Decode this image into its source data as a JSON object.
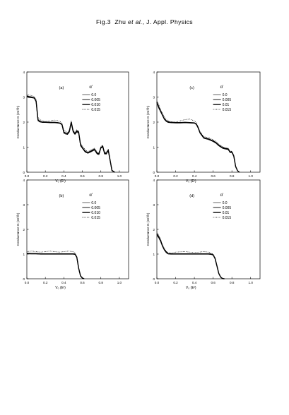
{
  "header": {
    "fig": "Fig.3",
    "authors": "Zhu",
    "etal": "et al.",
    "journal": ", J. Appl. Physics"
  },
  "chart_data": [
    {
      "type": "line",
      "panel_label": "(a)",
      "xlabel": "V₀ (Eᶠ)",
      "ylabel": "Conductance G (2e²/h)",
      "xlim": [
        0.0,
        1.1
      ],
      "ylim": [
        0,
        4
      ],
      "xticks": [
        "0.0",
        "0.2",
        "0.4",
        "0.6",
        "0.8",
        "1.0"
      ],
      "yticks": [
        "0",
        "1",
        "2",
        "3",
        "4"
      ],
      "legend_title": "α'",
      "legend_placement": "top-right",
      "series": [
        {
          "name": "0.0",
          "style": "solid-thin",
          "x": [
            0.0,
            0.02,
            0.05,
            0.08,
            0.1,
            0.12,
            0.14,
            0.17,
            0.2,
            0.25,
            0.3,
            0.33,
            0.36,
            0.38,
            0.4,
            0.42,
            0.44,
            0.46,
            0.48,
            0.5,
            0.52,
            0.54,
            0.56,
            0.58,
            0.6,
            0.63,
            0.66,
            0.7,
            0.73,
            0.76,
            0.78,
            0.8,
            0.82,
            0.84,
            0.86,
            0.88,
            0.9,
            0.92,
            0.95
          ],
          "y": [
            3.0,
            2.98,
            2.97,
            2.95,
            2.8,
            2.05,
            2.0,
            1.98,
            1.98,
            1.97,
            1.97,
            1.96,
            1.94,
            1.88,
            1.55,
            1.52,
            1.5,
            1.6,
            1.95,
            1.6,
            1.5,
            1.6,
            1.55,
            1.05,
            0.95,
            0.8,
            0.75,
            0.82,
            0.88,
            0.72,
            0.7,
            0.95,
            1.0,
            0.72,
            0.72,
            0.85,
            0.45,
            0.05,
            0.0
          ]
        },
        {
          "name": "0.005",
          "style": "solid-medium",
          "x": [
            0.0,
            0.02,
            0.05,
            0.08,
            0.1,
            0.12,
            0.14,
            0.17,
            0.2,
            0.25,
            0.3,
            0.33,
            0.36,
            0.38,
            0.4,
            0.42,
            0.44,
            0.46,
            0.48,
            0.5,
            0.52,
            0.54,
            0.56,
            0.58,
            0.6,
            0.63,
            0.66,
            0.7,
            0.73,
            0.76,
            0.78,
            0.8,
            0.82,
            0.84,
            0.86,
            0.88,
            0.9,
            0.92,
            0.95
          ],
          "y": [
            3.03,
            3.0,
            2.98,
            2.96,
            2.82,
            2.08,
            2.02,
            1.99,
            1.99,
            1.98,
            1.98,
            1.97,
            1.95,
            1.9,
            1.58,
            1.55,
            1.52,
            1.62,
            1.98,
            1.62,
            1.52,
            1.63,
            1.58,
            1.08,
            0.97,
            0.82,
            0.77,
            0.84,
            0.9,
            0.74,
            0.72,
            0.97,
            1.02,
            0.74,
            0.74,
            0.87,
            0.47,
            0.06,
            0.0
          ]
        },
        {
          "name": "0.010",
          "style": "solid-thick",
          "x": [
            0.0,
            0.02,
            0.05,
            0.08,
            0.1,
            0.12,
            0.14,
            0.17,
            0.2,
            0.25,
            0.3,
            0.33,
            0.36,
            0.38,
            0.4,
            0.42,
            0.44,
            0.46,
            0.48,
            0.5,
            0.52,
            0.54,
            0.56,
            0.58,
            0.6,
            0.63,
            0.66,
            0.7,
            0.73,
            0.76,
            0.78,
            0.8,
            0.82,
            0.84,
            0.86,
            0.88,
            0.9,
            0.92,
            0.95
          ],
          "y": [
            3.05,
            3.02,
            3.0,
            2.97,
            2.84,
            2.1,
            2.03,
            2.0,
            2.0,
            1.99,
            1.99,
            1.98,
            1.96,
            1.9,
            1.6,
            1.56,
            1.54,
            1.64,
            2.0,
            1.64,
            1.54,
            1.65,
            1.6,
            1.1,
            0.98,
            0.84,
            0.78,
            0.86,
            0.92,
            0.76,
            0.74,
            0.98,
            1.04,
            0.76,
            0.76,
            0.88,
            0.48,
            0.07,
            0.0
          ]
        },
        {
          "name": "0.015",
          "style": "dotted",
          "x": [
            0.0,
            0.02,
            0.05,
            0.08,
            0.1,
            0.12,
            0.14,
            0.17,
            0.2,
            0.25,
            0.3,
            0.33,
            0.36,
            0.38,
            0.4,
            0.42,
            0.44,
            0.46,
            0.48,
            0.5,
            0.52,
            0.54,
            0.56,
            0.58,
            0.6,
            0.63,
            0.66,
            0.7,
            0.73,
            0.76,
            0.78,
            0.8,
            0.82,
            0.84,
            0.86,
            0.88,
            0.9,
            0.92,
            0.95
          ],
          "y": [
            3.1,
            3.08,
            3.06,
            3.02,
            2.9,
            2.2,
            2.1,
            2.05,
            2.03,
            2.05,
            2.08,
            2.06,
            2.02,
            1.95,
            1.68,
            1.62,
            1.58,
            1.7,
            2.05,
            1.7,
            1.58,
            1.7,
            1.65,
            1.15,
            1.05,
            0.9,
            0.82,
            0.9,
            0.96,
            0.8,
            0.78,
            1.02,
            1.08,
            0.8,
            0.8,
            0.92,
            0.52,
            0.08,
            0.0
          ]
        }
      ]
    },
    {
      "type": "line",
      "panel_label": "(c)",
      "xlabel": "V₀ (Eᶠ)",
      "ylabel": "Conductance G (2e²/h)",
      "xlim": [
        0.0,
        1.1
      ],
      "ylim": [
        0,
        4
      ],
      "xticks": [
        "0.0",
        "0.2",
        "0.4",
        "0.6",
        "0.8",
        "1.0"
      ],
      "yticks": [
        "0",
        "1",
        "2",
        "3",
        "4"
      ],
      "legend_title": "α'",
      "legend_placement": "top-right",
      "series": [
        {
          "name": "0.0",
          "style": "solid-thin",
          "x": [
            0.0,
            0.02,
            0.04,
            0.06,
            0.08,
            0.1,
            0.12,
            0.15,
            0.2,
            0.25,
            0.3,
            0.35,
            0.4,
            0.42,
            0.44,
            0.46,
            0.48,
            0.5,
            0.55,
            0.6,
            0.63,
            0.66,
            0.7,
            0.73,
            0.76,
            0.78,
            0.8,
            0.82,
            0.84,
            0.86,
            0.88
          ],
          "y": [
            2.75,
            2.55,
            2.4,
            2.25,
            2.1,
            2.02,
            1.98,
            1.97,
            1.96,
            1.96,
            1.97,
            1.96,
            1.95,
            1.9,
            1.75,
            1.55,
            1.45,
            1.35,
            1.3,
            1.22,
            1.15,
            1.05,
            0.95,
            0.92,
            0.9,
            0.78,
            0.78,
            0.62,
            0.2,
            0.05,
            0.0
          ]
        },
        {
          "name": "0.005",
          "style": "solid-medium",
          "x": [
            0.0,
            0.02,
            0.04,
            0.06,
            0.08,
            0.1,
            0.12,
            0.15,
            0.2,
            0.25,
            0.3,
            0.35,
            0.4,
            0.42,
            0.44,
            0.46,
            0.48,
            0.5,
            0.55,
            0.6,
            0.63,
            0.66,
            0.7,
            0.73,
            0.76,
            0.78,
            0.8,
            0.82,
            0.84,
            0.86,
            0.88
          ],
          "y": [
            2.78,
            2.58,
            2.42,
            2.27,
            2.12,
            2.04,
            2.0,
            1.98,
            1.97,
            1.97,
            1.98,
            1.97,
            1.96,
            1.91,
            1.77,
            1.57,
            1.47,
            1.37,
            1.32,
            1.24,
            1.17,
            1.07,
            0.97,
            0.94,
            0.92,
            0.8,
            0.8,
            0.64,
            0.22,
            0.06,
            0.0
          ]
        },
        {
          "name": "0.01",
          "style": "solid-thick",
          "x": [
            0.0,
            0.02,
            0.04,
            0.06,
            0.08,
            0.1,
            0.12,
            0.15,
            0.2,
            0.25,
            0.3,
            0.35,
            0.4,
            0.42,
            0.44,
            0.46,
            0.48,
            0.5,
            0.55,
            0.6,
            0.63,
            0.66,
            0.7,
            0.73,
            0.76,
            0.78,
            0.8,
            0.82,
            0.84,
            0.86,
            0.88
          ],
          "y": [
            2.8,
            2.6,
            2.44,
            2.28,
            2.13,
            2.05,
            2.01,
            1.99,
            1.98,
            1.98,
            1.99,
            1.98,
            1.97,
            1.92,
            1.78,
            1.58,
            1.48,
            1.38,
            1.33,
            1.25,
            1.18,
            1.08,
            0.98,
            0.95,
            0.93,
            0.81,
            0.81,
            0.65,
            0.23,
            0.06,
            0.0
          ]
        },
        {
          "name": "0.015",
          "style": "dotted",
          "x": [
            0.0,
            0.02,
            0.04,
            0.06,
            0.08,
            0.1,
            0.12,
            0.15,
            0.2,
            0.25,
            0.3,
            0.35,
            0.4,
            0.42,
            0.44,
            0.46,
            0.48,
            0.5,
            0.55,
            0.6,
            0.63,
            0.66,
            0.7,
            0.73,
            0.76,
            0.78,
            0.8,
            0.82,
            0.84,
            0.86,
            0.88
          ],
          "y": [
            2.85,
            2.7,
            2.5,
            2.35,
            2.2,
            2.1,
            2.05,
            2.02,
            2.0,
            2.05,
            2.1,
            2.12,
            2.05,
            1.98,
            1.82,
            1.62,
            1.52,
            1.42,
            1.38,
            1.3,
            1.22,
            1.12,
            1.02,
            0.98,
            0.96,
            0.84,
            0.84,
            0.68,
            0.25,
            0.07,
            0.0
          ]
        }
      ]
    },
    {
      "type": "line",
      "panel_label": "(b)",
      "xlabel": "V₀ (Eᶠ)",
      "ylabel": "Conductance G (2e²/h)",
      "xlim": [
        0.0,
        1.1
      ],
      "ylim": [
        0,
        4
      ],
      "xticks": [
        "0.0",
        "0.2",
        "0.4",
        "0.6",
        "0.8",
        "1.0"
      ],
      "yticks": [
        "0",
        "1",
        "2",
        "3",
        "4"
      ],
      "legend_title": "α'",
      "legend_placement": "top-right",
      "series": [
        {
          "name": "0.0",
          "style": "solid-thin",
          "x": [
            0.0,
            0.05,
            0.1,
            0.15,
            0.2,
            0.25,
            0.3,
            0.35,
            0.4,
            0.45,
            0.5,
            0.52,
            0.54,
            0.56,
            0.58,
            0.6,
            0.62
          ],
          "y": [
            1.0,
            1.0,
            1.0,
            0.99,
            0.99,
            0.99,
            0.99,
            0.99,
            0.99,
            0.99,
            0.99,
            0.98,
            0.85,
            0.4,
            0.1,
            0.02,
            0.0
          ]
        },
        {
          "name": "0.005",
          "style": "solid-medium",
          "x": [
            0.0,
            0.05,
            0.1,
            0.15,
            0.2,
            0.25,
            0.3,
            0.35,
            0.4,
            0.45,
            0.5,
            0.52,
            0.54,
            0.56,
            0.58,
            0.6,
            0.62
          ],
          "y": [
            1.02,
            1.01,
            1.01,
            1.0,
            1.0,
            1.0,
            1.0,
            1.0,
            1.0,
            1.0,
            1.0,
            0.99,
            0.87,
            0.42,
            0.11,
            0.02,
            0.0
          ]
        },
        {
          "name": "0.010",
          "style": "solid-thick",
          "x": [
            0.0,
            0.05,
            0.1,
            0.15,
            0.2,
            0.25,
            0.3,
            0.35,
            0.4,
            0.45,
            0.5,
            0.52,
            0.54,
            0.56,
            0.58,
            0.6,
            0.62
          ],
          "y": [
            1.03,
            1.02,
            1.02,
            1.01,
            1.01,
            1.01,
            1.01,
            1.01,
            1.01,
            1.01,
            1.01,
            1.0,
            0.88,
            0.43,
            0.12,
            0.03,
            0.0
          ]
        },
        {
          "name": "0.015",
          "style": "dotted",
          "x": [
            0.0,
            0.05,
            0.1,
            0.15,
            0.2,
            0.25,
            0.3,
            0.35,
            0.4,
            0.45,
            0.5,
            0.52,
            0.54,
            0.56,
            0.58,
            0.6,
            0.62
          ],
          "y": [
            1.1,
            1.12,
            1.1,
            1.08,
            1.1,
            1.12,
            1.1,
            1.08,
            1.1,
            1.12,
            1.1,
            1.05,
            0.9,
            0.45,
            0.13,
            0.03,
            0.0
          ]
        }
      ]
    },
    {
      "type": "line",
      "panel_label": "(d)",
      "xlabel": "V₀ (Eᶠ)",
      "ylabel": "Conductance G (2e²/h)",
      "xlim": [
        0.0,
        1.1
      ],
      "ylim": [
        0,
        4
      ],
      "xticks": [
        "0.0",
        "0.2",
        "0.4",
        "0.6",
        "0.8",
        "1.0"
      ],
      "yticks": [
        "0",
        "1",
        "2",
        "3",
        "4"
      ],
      "legend_title": "α'",
      "legend_placement": "top-right",
      "series": [
        {
          "name": "0.0",
          "style": "solid-thin",
          "x": [
            0.0,
            0.02,
            0.04,
            0.06,
            0.08,
            0.1,
            0.12,
            0.15,
            0.2,
            0.3,
            0.4,
            0.5,
            0.55,
            0.58,
            0.6,
            0.62,
            0.64,
            0.66,
            0.68,
            0.7,
            0.72
          ],
          "y": [
            1.75,
            1.65,
            1.5,
            1.3,
            1.15,
            1.05,
            1.0,
            0.99,
            0.99,
            0.99,
            0.99,
            0.99,
            0.99,
            0.98,
            0.95,
            0.8,
            0.5,
            0.2,
            0.06,
            0.01,
            0.0
          ]
        },
        {
          "name": "0.005",
          "style": "solid-medium",
          "x": [
            0.0,
            0.02,
            0.04,
            0.06,
            0.08,
            0.1,
            0.12,
            0.15,
            0.2,
            0.3,
            0.4,
            0.5,
            0.55,
            0.58,
            0.6,
            0.62,
            0.64,
            0.66,
            0.68,
            0.7,
            0.72
          ],
          "y": [
            1.8,
            1.68,
            1.52,
            1.32,
            1.17,
            1.07,
            1.01,
            1.0,
            1.0,
            1.0,
            1.0,
            1.0,
            1.0,
            0.99,
            0.96,
            0.82,
            0.52,
            0.21,
            0.07,
            0.01,
            0.0
          ]
        },
        {
          "name": "0.01",
          "style": "solid-thick",
          "x": [
            0.0,
            0.02,
            0.04,
            0.06,
            0.08,
            0.1,
            0.12,
            0.15,
            0.2,
            0.3,
            0.4,
            0.5,
            0.55,
            0.58,
            0.6,
            0.62,
            0.64,
            0.66,
            0.68,
            0.7,
            0.72
          ],
          "y": [
            1.82,
            1.7,
            1.54,
            1.33,
            1.18,
            1.08,
            1.02,
            1.01,
            1.01,
            1.01,
            1.01,
            1.01,
            1.01,
            1.0,
            0.97,
            0.83,
            0.53,
            0.22,
            0.07,
            0.01,
            0.0
          ]
        },
        {
          "name": "0.015",
          "style": "dotted",
          "x": [
            0.0,
            0.02,
            0.04,
            0.06,
            0.08,
            0.1,
            0.12,
            0.15,
            0.2,
            0.3,
            0.4,
            0.5,
            0.55,
            0.58,
            0.6,
            0.62,
            0.64,
            0.66,
            0.68,
            0.7,
            0.72
          ],
          "y": [
            1.9,
            1.75,
            1.6,
            1.38,
            1.22,
            1.12,
            1.06,
            1.04,
            1.08,
            1.1,
            1.06,
            1.1,
            1.08,
            1.03,
            1.0,
            0.86,
            0.56,
            0.24,
            0.08,
            0.02,
            0.0
          ]
        }
      ]
    }
  ]
}
